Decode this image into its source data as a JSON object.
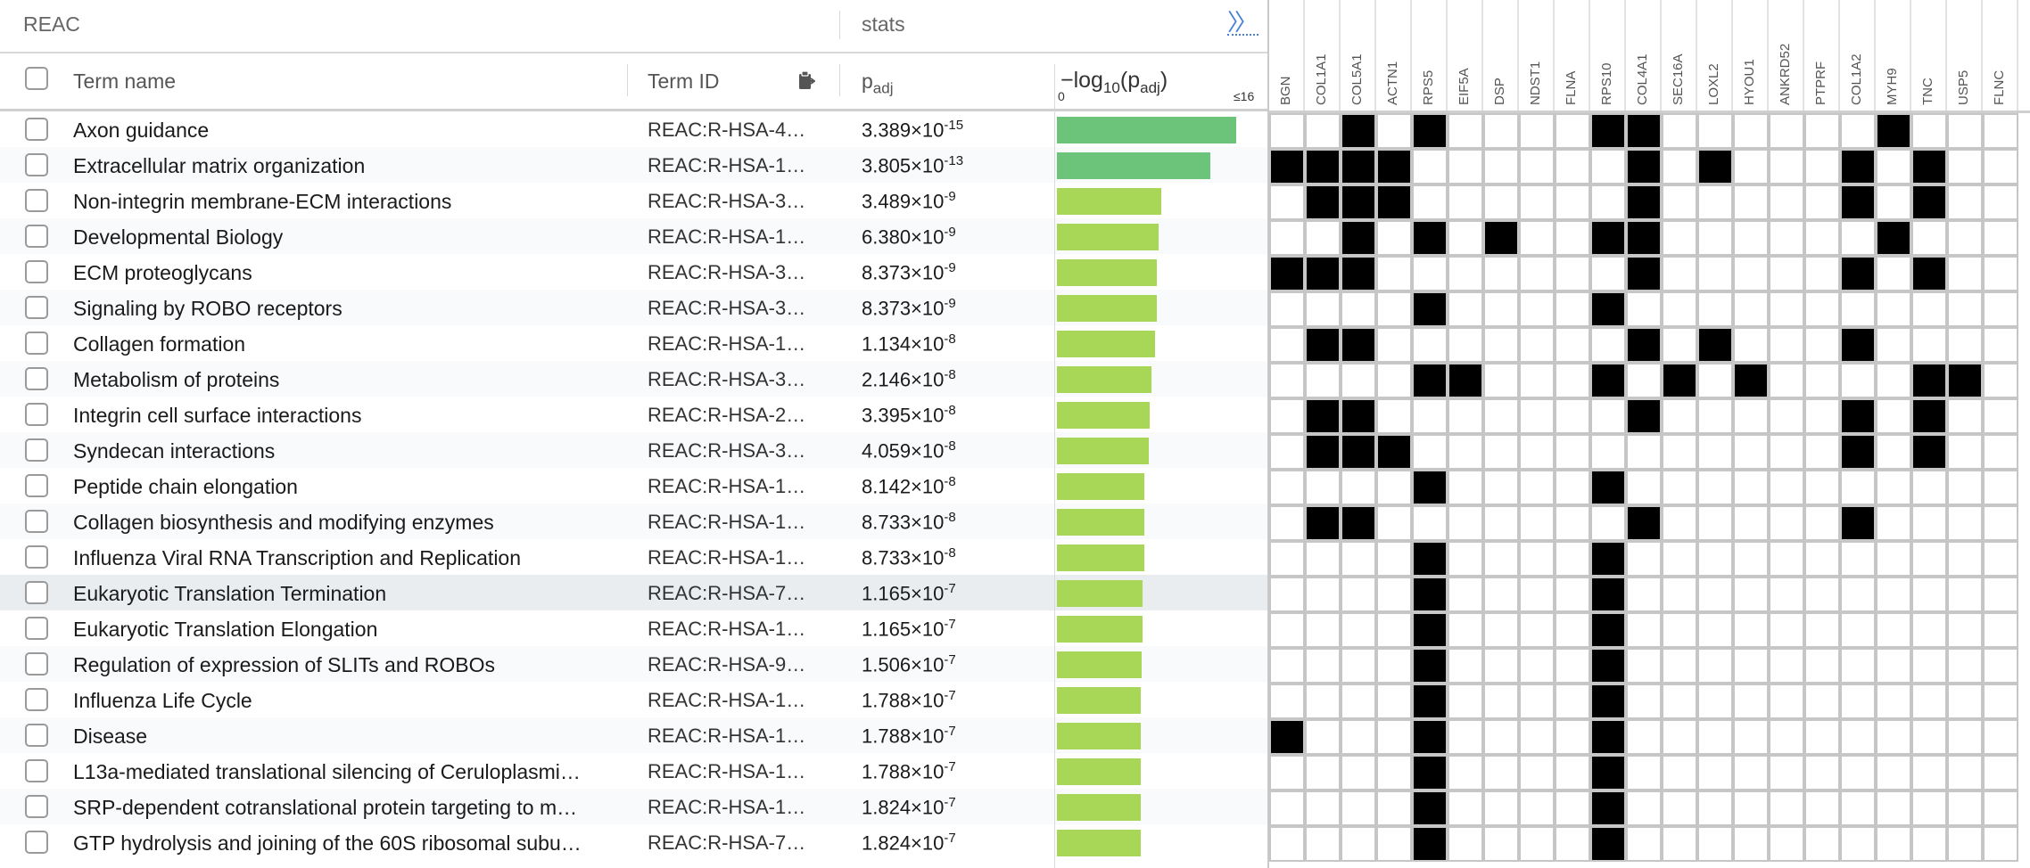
{
  "header": {
    "source": "REAC",
    "stats": "stats",
    "expand_icon": "double-chevron-right"
  },
  "columns": {
    "term_name": "Term name",
    "term_id": "Term ID",
    "padj_main": "p",
    "padj_sub": "adj",
    "score_label_prefix": "−log",
    "score_label_base": "10",
    "score_label_mid": "(p",
    "score_label_sub": "adj",
    "score_label_end": ")",
    "scale_min": "0",
    "scale_max": "≤16"
  },
  "colors": {
    "bar_strong": "#6cc47a",
    "bar_weak": "#a8d657",
    "cell_on": "#000000",
    "expand": "#4a7fd6"
  },
  "genes": [
    "BGN",
    "COL1A1",
    "COL5A1",
    "ACTN1",
    "RPS5",
    "EIF5A",
    "DSP",
    "NDST1",
    "FLNA",
    "RPS10",
    "COL4A1",
    "SEC16A",
    "LOXL2",
    "HYOU1",
    "ANKRD52",
    "PTPRF",
    "COL1A2",
    "MYH9",
    "TNC",
    "USP5",
    "FLNC"
  ],
  "rows": [
    {
      "term": "Axon guidance",
      "id": "REAC:R-HSA-4…",
      "p_base": "3.389×10",
      "p_exp": "-15",
      "score": 14.47,
      "genes": [
        2,
        4,
        9,
        10,
        17
      ]
    },
    {
      "term": "Extracellular matrix organization",
      "id": "REAC:R-HSA-1…",
      "p_base": "3.805×10",
      "p_exp": "-13",
      "score": 12.42,
      "genes": [
        0,
        1,
        2,
        3,
        10,
        12,
        16,
        18
      ]
    },
    {
      "term": "Non-integrin membrane-ECM interactions",
      "id": "REAC:R-HSA-3…",
      "p_base": "3.489×10",
      "p_exp": "-9",
      "score": 8.46,
      "genes": [
        1,
        2,
        3,
        10,
        16,
        18
      ]
    },
    {
      "term": "Developmental Biology",
      "id": "REAC:R-HSA-1…",
      "p_base": "6.380×10",
      "p_exp": "-9",
      "score": 8.2,
      "genes": [
        2,
        4,
        6,
        9,
        10,
        17
      ]
    },
    {
      "term": "ECM proteoglycans",
      "id": "REAC:R-HSA-3…",
      "p_base": "8.373×10",
      "p_exp": "-9",
      "score": 8.08,
      "genes": [
        0,
        1,
        2,
        10,
        16,
        18
      ]
    },
    {
      "term": "Signaling by ROBO receptors",
      "id": "REAC:R-HSA-3…",
      "p_base": "8.373×10",
      "p_exp": "-9",
      "score": 8.08,
      "genes": [
        4,
        9
      ]
    },
    {
      "term": "Collagen formation",
      "id": "REAC:R-HSA-1…",
      "p_base": "1.134×10",
      "p_exp": "-8",
      "score": 7.95,
      "genes": [
        1,
        2,
        10,
        12,
        16
      ]
    },
    {
      "term": "Metabolism of proteins",
      "id": "REAC:R-HSA-3…",
      "p_base": "2.146×10",
      "p_exp": "-8",
      "score": 7.67,
      "genes": [
        4,
        5,
        9,
        11,
        13,
        18,
        19
      ]
    },
    {
      "term": "Integrin cell surface interactions",
      "id": "REAC:R-HSA-2…",
      "p_base": "3.395×10",
      "p_exp": "-8",
      "score": 7.47,
      "genes": [
        1,
        2,
        10,
        16,
        18
      ]
    },
    {
      "term": "Syndecan interactions",
      "id": "REAC:R-HSA-3…",
      "p_base": "4.059×10",
      "p_exp": "-8",
      "score": 7.39,
      "genes": [
        1,
        2,
        3,
        16,
        18
      ]
    },
    {
      "term": "Peptide chain elongation",
      "id": "REAC:R-HSA-1…",
      "p_base": "8.142×10",
      "p_exp": "-8",
      "score": 7.09,
      "genes": [
        4,
        9
      ]
    },
    {
      "term": "Collagen biosynthesis and modifying enzymes",
      "id": "REAC:R-HSA-1…",
      "p_base": "8.733×10",
      "p_exp": "-8",
      "score": 7.06,
      "genes": [
        1,
        2,
        10,
        16
      ]
    },
    {
      "term": "Influenza Viral RNA Transcription and Replication",
      "id": "REAC:R-HSA-1…",
      "p_base": "8.733×10",
      "p_exp": "-8",
      "score": 7.06,
      "genes": [
        4,
        9
      ]
    },
    {
      "term": "Eukaryotic Translation Termination",
      "id": "REAC:R-HSA-7…",
      "p_base": "1.165×10",
      "p_exp": "-7",
      "score": 6.93,
      "genes": [
        4,
        9
      ]
    },
    {
      "term": "Eukaryotic Translation Elongation",
      "id": "REAC:R-HSA-1…",
      "p_base": "1.165×10",
      "p_exp": "-7",
      "score": 6.93,
      "genes": [
        4,
        9
      ]
    },
    {
      "term": "Regulation of expression of SLITs and ROBOs",
      "id": "REAC:R-HSA-9…",
      "p_base": "1.506×10",
      "p_exp": "-7",
      "score": 6.82,
      "genes": [
        4,
        9
      ]
    },
    {
      "term": "Influenza Life Cycle",
      "id": "REAC:R-HSA-1…",
      "p_base": "1.788×10",
      "p_exp": "-7",
      "score": 6.75,
      "genes": [
        4,
        9
      ]
    },
    {
      "term": "Disease",
      "id": "REAC:R-HSA-1…",
      "p_base": "1.788×10",
      "p_exp": "-7",
      "score": 6.75,
      "genes": [
        0,
        4,
        9
      ]
    },
    {
      "term": "L13a-mediated translational silencing of Ceruloplasmi…",
      "id": "REAC:R-HSA-1…",
      "p_base": "1.788×10",
      "p_exp": "-7",
      "score": 6.75,
      "genes": [
        4,
        9
      ]
    },
    {
      "term": "SRP-dependent cotranslational protein targeting to m…",
      "id": "REAC:R-HSA-1…",
      "p_base": "1.824×10",
      "p_exp": "-7",
      "score": 6.74,
      "genes": [
        4,
        9
      ]
    },
    {
      "term": "GTP hydrolysis and joining of the 60S ribosomal subu…",
      "id": "REAC:R-HSA-7…",
      "p_base": "1.824×10",
      "p_exp": "-7",
      "score": 6.74,
      "genes": [
        4,
        9
      ]
    }
  ],
  "highlighted_row": 13
}
